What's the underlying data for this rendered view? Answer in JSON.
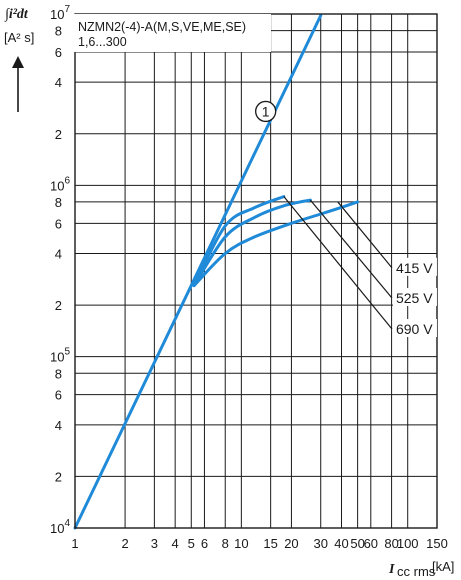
{
  "chart_data": {
    "type": "line",
    "title_lines": [
      "NZMN2(-4)-A(M,S,VE,ME,SE)",
      "1,6...300"
    ],
    "ylabel_top": "∫i²dt",
    "ylabel_unit": "[A² s]",
    "xlabel_main": "I",
    "xlabel_sub": "cc rms",
    "xlabel_unit": "[kA]",
    "x_scale": "log",
    "y_scale": "log",
    "xlim": [
      1,
      150
    ],
    "ylim": [
      10000,
      10000000
    ],
    "grid": true,
    "x_tick_labels": [
      {
        "value": 1,
        "label": "1"
      },
      {
        "value": 2,
        "label": "2"
      },
      {
        "value": 3,
        "label": "3"
      },
      {
        "value": 4,
        "label": "4"
      },
      {
        "value": 5,
        "label": "5"
      },
      {
        "value": 6,
        "label": "6"
      },
      {
        "value": 8,
        "label": "8"
      },
      {
        "value": 10,
        "label": "10"
      },
      {
        "value": 15,
        "label": "15"
      },
      {
        "value": 20,
        "label": "20"
      },
      {
        "value": 30,
        "label": "30"
      },
      {
        "value": 40,
        "label": "40"
      },
      {
        "value": 50,
        "label": "50"
      },
      {
        "value": 60,
        "label": "60"
      },
      {
        "value": 80,
        "label": "80"
      },
      {
        "value": 100,
        "label": "100"
      },
      {
        "value": 150,
        "label": "150"
      }
    ],
    "y_tick_labels": [
      {
        "value": 10000,
        "mantissa": "10",
        "exponent": "4"
      },
      {
        "value": 20000,
        "mantissa": "2",
        "exponent": ""
      },
      {
        "value": 40000,
        "mantissa": "4",
        "exponent": ""
      },
      {
        "value": 60000,
        "mantissa": "6",
        "exponent": ""
      },
      {
        "value": 80000,
        "mantissa": "8",
        "exponent": ""
      },
      {
        "value": 100000,
        "mantissa": "10",
        "exponent": "5"
      },
      {
        "value": 200000,
        "mantissa": "2",
        "exponent": ""
      },
      {
        "value": 400000,
        "mantissa": "4",
        "exponent": ""
      },
      {
        "value": 600000,
        "mantissa": "6",
        "exponent": ""
      },
      {
        "value": 800000,
        "mantissa": "8",
        "exponent": ""
      },
      {
        "value": 1000000,
        "mantissa": "10",
        "exponent": "6"
      },
      {
        "value": 2000000,
        "mantissa": "2",
        "exponent": ""
      },
      {
        "value": 4000000,
        "mantissa": "4",
        "exponent": ""
      },
      {
        "value": 6000000,
        "mantissa": "6",
        "exponent": ""
      },
      {
        "value": 8000000,
        "mantissa": "8",
        "exponent": ""
      },
      {
        "value": 10000000,
        "mantissa": "10",
        "exponent": "7"
      }
    ],
    "series": [
      {
        "name": "①",
        "color": "#1f8ad8",
        "x": [
          1,
          2,
          5,
          10,
          20,
          30
        ],
        "y": [
          10000,
          40000,
          250000,
          1000000,
          4000000,
          9800000
        ]
      },
      {
        "name": "415 V",
        "color": "#1f8ad8",
        "x": [
          5.2,
          8,
          12,
          20,
          30,
          50
        ],
        "y": [
          260000,
          400000,
          500000,
          600000,
          680000,
          800000
        ]
      },
      {
        "name": "525 V",
        "color": "#1f8ad8",
        "x": [
          5.2,
          8,
          12,
          18,
          26
        ],
        "y": [
          260000,
          500000,
          650000,
          760000,
          820000
        ]
      },
      {
        "name": "690 V",
        "color": "#1f8ad8",
        "x": [
          5.2,
          8,
          12,
          18
        ],
        "y": [
          260000,
          580000,
          740000,
          860000
        ]
      }
    ],
    "annotations": [
      {
        "text": "①",
        "x": 14,
        "y": 2700000,
        "kind": "circled-marker"
      },
      {
        "text": "415 V",
        "x": 85,
        "y": 330000,
        "from": [
          38,
          800000
        ]
      },
      {
        "text": "525 V",
        "x": 85,
        "y": 220000,
        "from": [
          26,
          820000
        ]
      },
      {
        "text": "690 V",
        "x": 85,
        "y": 145000,
        "from": [
          18,
          860000
        ]
      }
    ]
  }
}
